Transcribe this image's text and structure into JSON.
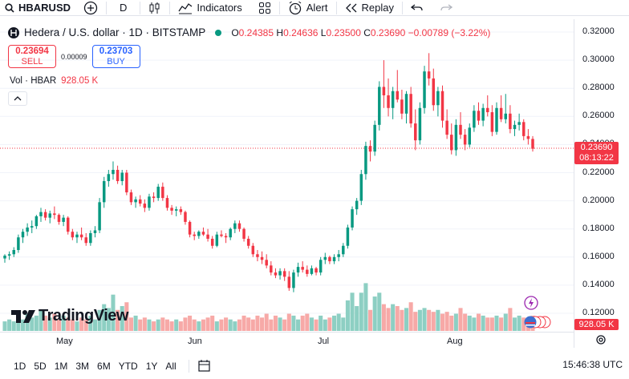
{
  "toolbar": {
    "symbol": "HBARUSD",
    "interval": "D",
    "indicators_label": "Indicators",
    "alert_label": "Alert",
    "replay_label": "Replay"
  },
  "legend": {
    "title": "Hedera / U.S. dollar · 1D · BITSTAMP",
    "o_label": "O",
    "o": "0.24385",
    "h_label": "H",
    "h": "0.24636",
    "l_label": "L",
    "l": "0.23500",
    "c_label": "C",
    "c": "0.23690",
    "change": "−0.00789 (−3.22%)"
  },
  "trade": {
    "sell_price": "0.23694",
    "sell_label": "SELL",
    "spread": "0.00009",
    "buy_price": "0.23703",
    "buy_label": "BUY"
  },
  "volume_legend": {
    "label": "Vol · HBAR",
    "value": "928.05 K"
  },
  "last_price": {
    "price": "0.23690",
    "countdown": "08:13:22"
  },
  "volume_tag": "928.05 K",
  "brand": "TradingView",
  "ranges": [
    "1D",
    "5D",
    "1M",
    "3M",
    "6M",
    "YTD",
    "1Y",
    "All"
  ],
  "clock": "15:46:38 UTC",
  "colors": {
    "up": "#089981",
    "down": "#f23645",
    "vol_up": "#8dcfc3",
    "vol_down": "#f7a9a7"
  },
  "chart_data": {
    "type": "candlestick",
    "title": "Hedera / U.S. dollar · 1D · BITSTAMP",
    "y_ticks": [
      "0.32000",
      "0.30000",
      "0.28000",
      "0.26000",
      "0.24000",
      "0.22000",
      "0.20000",
      "0.18000",
      "0.16000",
      "0.14000",
      "0.12000"
    ],
    "x_ticks": [
      "May",
      "Jun",
      "Jul",
      "Aug"
    ],
    "ylim": [
      0.12,
      0.32
    ],
    "candles": [
      [
        0.159,
        0.162,
        0.156,
        0.161
      ],
      [
        0.161,
        0.164,
        0.158,
        0.162
      ],
      [
        0.162,
        0.167,
        0.16,
        0.165
      ],
      [
        0.165,
        0.176,
        0.163,
        0.174
      ],
      [
        0.174,
        0.18,
        0.17,
        0.178
      ],
      [
        0.178,
        0.184,
        0.175,
        0.181
      ],
      [
        0.181,
        0.186,
        0.177,
        0.182
      ],
      [
        0.182,
        0.19,
        0.18,
        0.189
      ],
      [
        0.189,
        0.195,
        0.185,
        0.192
      ],
      [
        0.192,
        0.194,
        0.186,
        0.188
      ],
      [
        0.188,
        0.193,
        0.184,
        0.191
      ],
      [
        0.191,
        0.196,
        0.187,
        0.19
      ],
      [
        0.19,
        0.191,
        0.183,
        0.185
      ],
      [
        0.185,
        0.19,
        0.182,
        0.188
      ],
      [
        0.188,
        0.189,
        0.176,
        0.178
      ],
      [
        0.178,
        0.18,
        0.172,
        0.174
      ],
      [
        0.174,
        0.178,
        0.17,
        0.176
      ],
      [
        0.176,
        0.181,
        0.172,
        0.174
      ],
      [
        0.174,
        0.177,
        0.168,
        0.17
      ],
      [
        0.17,
        0.179,
        0.168,
        0.177
      ],
      [
        0.177,
        0.182,
        0.174,
        0.179
      ],
      [
        0.179,
        0.202,
        0.177,
        0.199
      ],
      [
        0.199,
        0.217,
        0.195,
        0.214
      ],
      [
        0.214,
        0.222,
        0.21,
        0.219
      ],
      [
        0.219,
        0.228,
        0.215,
        0.222
      ],
      [
        0.222,
        0.225,
        0.212,
        0.214
      ],
      [
        0.214,
        0.222,
        0.211,
        0.22
      ],
      [
        0.22,
        0.222,
        0.204,
        0.206
      ],
      [
        0.206,
        0.208,
        0.197,
        0.199
      ],
      [
        0.199,
        0.203,
        0.195,
        0.201
      ],
      [
        0.201,
        0.204,
        0.196,
        0.198
      ],
      [
        0.198,
        0.201,
        0.192,
        0.195
      ],
      [
        0.195,
        0.205,
        0.193,
        0.203
      ],
      [
        0.203,
        0.206,
        0.199,
        0.202
      ],
      [
        0.202,
        0.212,
        0.2,
        0.21
      ],
      [
        0.21,
        0.213,
        0.2,
        0.202
      ],
      [
        0.202,
        0.204,
        0.193,
        0.195
      ],
      [
        0.195,
        0.197,
        0.19,
        0.193
      ],
      [
        0.193,
        0.196,
        0.189,
        0.194
      ],
      [
        0.194,
        0.196,
        0.19,
        0.192
      ],
      [
        0.192,
        0.193,
        0.183,
        0.185
      ],
      [
        0.185,
        0.186,
        0.174,
        0.176
      ],
      [
        0.176,
        0.178,
        0.172,
        0.175
      ],
      [
        0.175,
        0.179,
        0.173,
        0.178
      ],
      [
        0.178,
        0.181,
        0.175,
        0.176
      ],
      [
        0.176,
        0.18,
        0.171,
        0.173
      ],
      [
        0.173,
        0.175,
        0.166,
        0.168
      ],
      [
        0.168,
        0.178,
        0.167,
        0.176
      ],
      [
        0.176,
        0.179,
        0.174,
        0.175
      ],
      [
        0.175,
        0.177,
        0.17,
        0.174
      ],
      [
        0.174,
        0.181,
        0.172,
        0.18
      ],
      [
        0.18,
        0.186,
        0.177,
        0.184
      ],
      [
        0.184,
        0.186,
        0.178,
        0.18
      ],
      [
        0.18,
        0.181,
        0.171,
        0.173
      ],
      [
        0.173,
        0.175,
        0.166,
        0.168
      ],
      [
        0.168,
        0.17,
        0.16,
        0.162
      ],
      [
        0.162,
        0.165,
        0.157,
        0.16
      ],
      [
        0.16,
        0.164,
        0.155,
        0.158
      ],
      [
        0.158,
        0.162,
        0.152,
        0.154
      ],
      [
        0.154,
        0.157,
        0.147,
        0.149
      ],
      [
        0.149,
        0.152,
        0.145,
        0.147
      ],
      [
        0.147,
        0.152,
        0.144,
        0.15
      ],
      [
        0.15,
        0.152,
        0.143,
        0.146
      ],
      [
        0.146,
        0.15,
        0.136,
        0.138
      ],
      [
        0.138,
        0.151,
        0.135,
        0.149
      ],
      [
        0.149,
        0.156,
        0.146,
        0.153
      ],
      [
        0.153,
        0.157,
        0.149,
        0.151
      ],
      [
        0.151,
        0.154,
        0.146,
        0.148
      ],
      [
        0.148,
        0.154,
        0.147,
        0.152
      ],
      [
        0.152,
        0.153,
        0.147,
        0.149
      ],
      [
        0.149,
        0.16,
        0.147,
        0.158
      ],
      [
        0.158,
        0.163,
        0.155,
        0.16
      ],
      [
        0.16,
        0.161,
        0.155,
        0.157
      ],
      [
        0.157,
        0.162,
        0.155,
        0.16
      ],
      [
        0.16,
        0.165,
        0.157,
        0.162
      ],
      [
        0.162,
        0.17,
        0.16,
        0.168
      ],
      [
        0.168,
        0.183,
        0.166,
        0.181
      ],
      [
        0.181,
        0.196,
        0.179,
        0.194
      ],
      [
        0.194,
        0.202,
        0.19,
        0.2
      ],
      [
        0.2,
        0.222,
        0.197,
        0.219
      ],
      [
        0.219,
        0.242,
        0.215,
        0.239
      ],
      [
        0.239,
        0.243,
        0.228,
        0.235
      ],
      [
        0.235,
        0.257,
        0.232,
        0.254
      ],
      [
        0.254,
        0.285,
        0.25,
        0.281
      ],
      [
        0.281,
        0.3,
        0.266,
        0.275
      ],
      [
        0.275,
        0.287,
        0.26,
        0.266
      ],
      [
        0.266,
        0.281,
        0.258,
        0.278
      ],
      [
        0.278,
        0.293,
        0.27,
        0.272
      ],
      [
        0.272,
        0.279,
        0.258,
        0.262
      ],
      [
        0.262,
        0.278,
        0.255,
        0.276
      ],
      [
        0.276,
        0.281,
        0.252,
        0.255
      ],
      [
        0.255,
        0.265,
        0.236,
        0.243
      ],
      [
        0.243,
        0.27,
        0.24,
        0.266
      ],
      [
        0.266,
        0.296,
        0.262,
        0.292
      ],
      [
        0.292,
        0.305,
        0.282,
        0.287
      ],
      [
        0.287,
        0.294,
        0.264,
        0.268
      ],
      [
        0.268,
        0.281,
        0.26,
        0.278
      ],
      [
        0.278,
        0.282,
        0.252,
        0.257
      ],
      [
        0.257,
        0.265,
        0.244,
        0.247
      ],
      [
        0.247,
        0.255,
        0.233,
        0.236
      ],
      [
        0.236,
        0.258,
        0.232,
        0.254
      ],
      [
        0.254,
        0.263,
        0.244,
        0.247
      ],
      [
        0.247,
        0.251,
        0.236,
        0.24
      ],
      [
        0.24,
        0.255,
        0.238,
        0.252
      ],
      [
        0.252,
        0.268,
        0.249,
        0.264
      ],
      [
        0.264,
        0.27,
        0.254,
        0.257
      ],
      [
        0.257,
        0.269,
        0.253,
        0.266
      ],
      [
        0.266,
        0.275,
        0.26,
        0.263
      ],
      [
        0.263,
        0.268,
        0.246,
        0.249
      ],
      [
        0.249,
        0.27,
        0.247,
        0.266
      ],
      [
        0.266,
        0.275,
        0.256,
        0.258
      ],
      [
        0.258,
        0.276,
        0.255,
        0.262
      ],
      [
        0.262,
        0.268,
        0.248,
        0.251
      ],
      [
        0.251,
        0.257,
        0.246,
        0.254
      ],
      [
        0.254,
        0.262,
        0.25,
        0.256
      ],
      [
        0.256,
        0.258,
        0.243,
        0.246
      ],
      [
        0.246,
        0.251,
        0.24,
        0.244
      ],
      [
        0.244,
        0.246,
        0.235,
        0.237
      ]
    ],
    "volume_scale_max": 1.0,
    "volumes": [
      0.25,
      0.3,
      0.25,
      0.35,
      0.3,
      0.45,
      0.35,
      0.4,
      0.55,
      0.4,
      0.35,
      0.45,
      0.3,
      0.4,
      0.35,
      0.3,
      0.25,
      0.35,
      0.3,
      0.4,
      0.3,
      0.55,
      0.7,
      0.6,
      0.95,
      0.55,
      0.65,
      0.75,
      0.35,
      0.4,
      0.3,
      0.35,
      0.3,
      0.25,
      0.3,
      0.35,
      0.3,
      0.25,
      0.3,
      0.25,
      0.35,
      0.4,
      0.3,
      0.25,
      0.3,
      0.35,
      0.4,
      0.25,
      0.3,
      0.35,
      0.3,
      0.25,
      0.3,
      0.4,
      0.35,
      0.3,
      0.4,
      0.35,
      0.45,
      0.3,
      0.4,
      0.35,
      0.3,
      0.45,
      0.4,
      0.3,
      0.4,
      0.45,
      0.35,
      0.3,
      0.4,
      0.3,
      0.35,
      0.4,
      0.45,
      0.35,
      0.8,
      1.0,
      0.65,
      1.0,
      1.25,
      0.55,
      0.9,
      1.0,
      0.7,
      0.6,
      0.7,
      0.65,
      0.55,
      0.6,
      0.75,
      0.5,
      0.55,
      0.6,
      0.55,
      0.5,
      0.55,
      0.45,
      0.5,
      0.4,
      0.45,
      0.6,
      0.45,
      0.4,
      0.35,
      0.45,
      0.4,
      0.35,
      0.35,
      0.4,
      0.35,
      0.45,
      0.6,
      0.35,
      0.4,
      0.35,
      0.3,
      0.4
    ]
  }
}
